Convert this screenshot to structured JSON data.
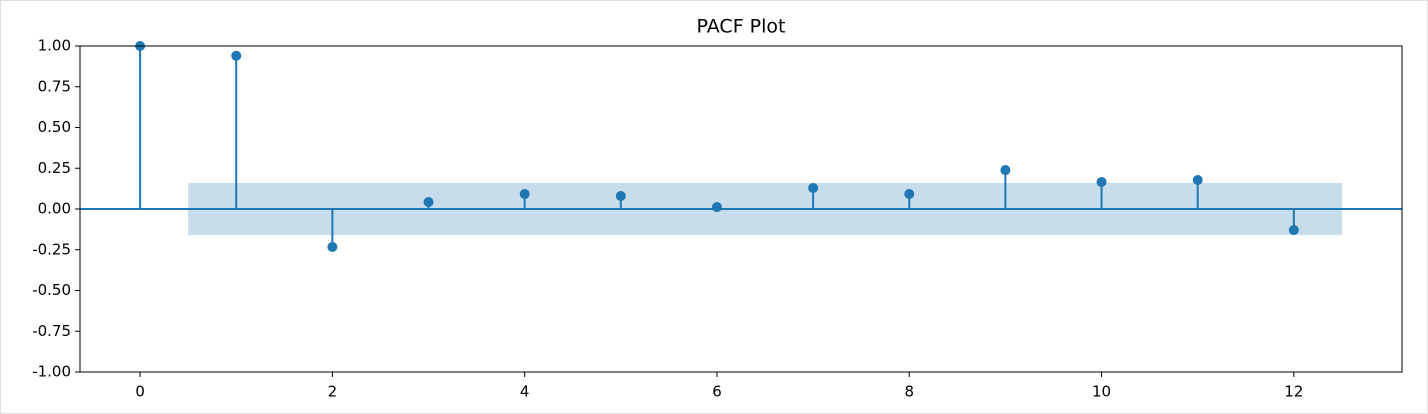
{
  "chart_data": {
    "type": "stem",
    "title": "PACF Plot",
    "x": [
      0,
      1,
      2,
      3,
      4,
      5,
      6,
      7,
      8,
      9,
      10,
      11,
      12
    ],
    "values": [
      1.0,
      0.94,
      -0.233,
      0.043,
      0.092,
      0.08,
      0.012,
      0.129,
      0.092,
      0.239,
      0.166,
      0.178,
      -0.129
    ],
    "color": "#1f77b4",
    "conf_band": {
      "x": [
        0.5,
        12.5
      ],
      "upper": 0.16,
      "lower": -0.16,
      "color": "#1f77b4"
    },
    "xlim": [
      -0.625,
      13.125
    ],
    "ylim": [
      -1,
      1
    ],
    "xticks": [
      0,
      2,
      4,
      6,
      8,
      10,
      12
    ],
    "yticks": [
      {
        "value": -1,
        "label": "-1.00"
      },
      {
        "value": -0.75,
        "label": "-0.75"
      },
      {
        "value": -0.5,
        "label": "-0.50"
      },
      {
        "value": -0.25,
        "label": "-0.25"
      },
      {
        "value": 0,
        "label": "0.00"
      },
      {
        "value": 0.25,
        "label": "0.25"
      },
      {
        "value": 0.5,
        "label": "0.50"
      },
      {
        "value": 0.75,
        "label": "0.75"
      },
      {
        "value": 1,
        "label": "1.00"
      }
    ],
    "grid": false
  }
}
